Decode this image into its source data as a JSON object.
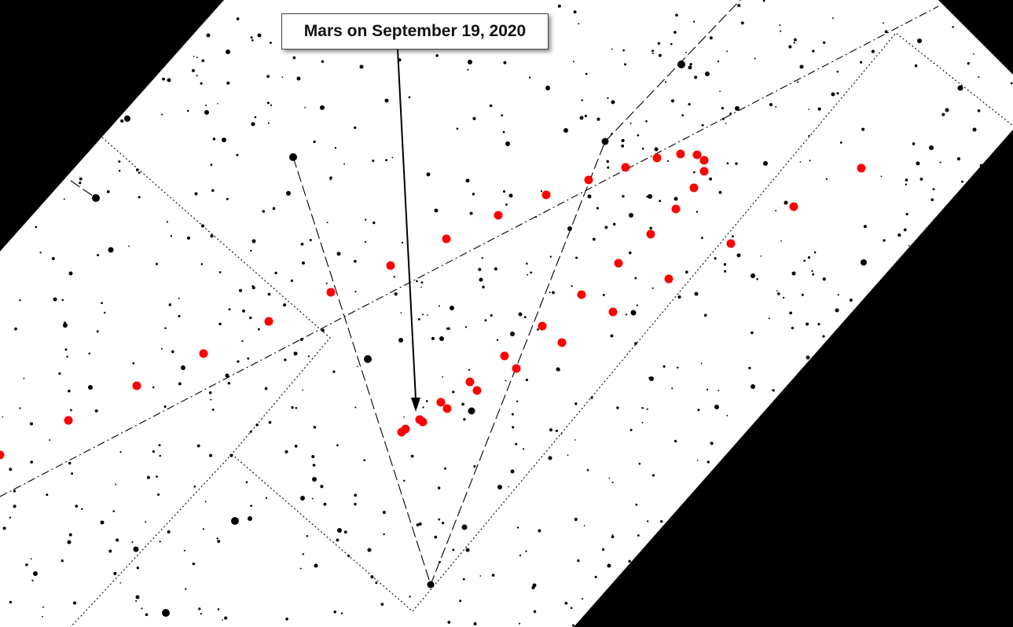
{
  "annotation": {
    "label": "Mars on September 19, 2020"
  },
  "colors": {
    "sky": "#ffffff",
    "mask": "#000000",
    "mars": "#ff0000",
    "stars": "#000000",
    "lines": "#000000"
  }
}
